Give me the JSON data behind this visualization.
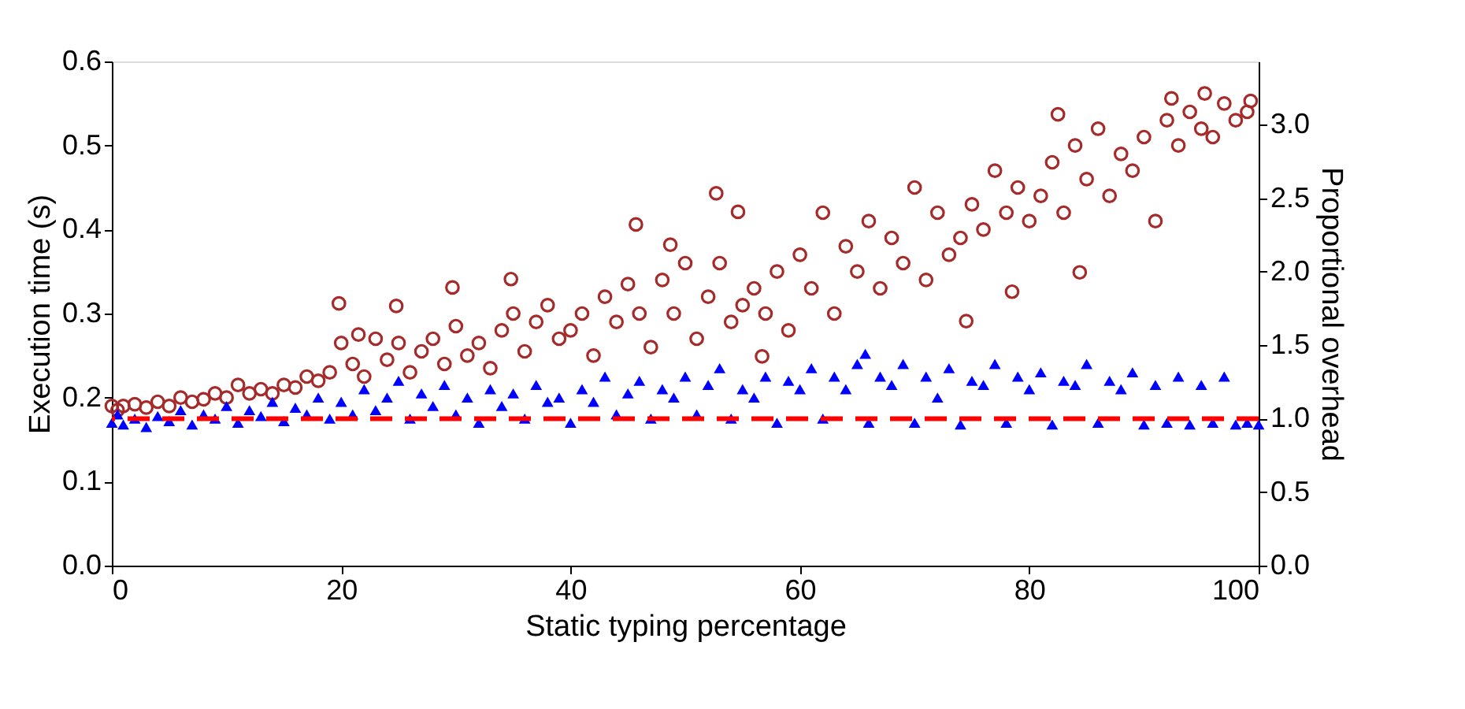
{
  "chart_data": {
    "type": "scatter",
    "xlabel": "Static typing percentage",
    "ylabel": "Execution time (s)",
    "y2label": "Proportional overhead",
    "xlim": [
      0,
      100
    ],
    "xticks": [
      0,
      20,
      40,
      60,
      80,
      100
    ],
    "ylim": [
      0,
      0.6
    ],
    "yticks": [
      {
        "value": 0,
        "label": "0.0"
      },
      {
        "value": 0.1,
        "label": "0.1"
      },
      {
        "value": 0.2,
        "label": "0.2"
      },
      {
        "value": 0.3,
        "label": "0.3"
      },
      {
        "value": 0.4,
        "label": "0.4"
      },
      {
        "value": 0.5,
        "label": "0.5"
      },
      {
        "value": 0.6,
        "label": "0.6"
      }
    ],
    "y2lim": [
      0,
      3.43
    ],
    "y2ticks": [
      {
        "value": 0,
        "label": "0.0"
      },
      {
        "value": 0.5,
        "label": "0.5"
      },
      {
        "value": 1,
        "label": "1.0"
      },
      {
        "value": 1.5,
        "label": "1.5"
      },
      {
        "value": 2,
        "label": "2.0"
      },
      {
        "value": 2.5,
        "label": "2.5"
      },
      {
        "value": 3,
        "label": "3.0"
      }
    ],
    "grid": false,
    "ref_lines": [
      {
        "axis": "y2",
        "value": 1,
        "color": "#ff0000",
        "line_style": "dashed"
      }
    ],
    "series": [
      {
        "color": "#a52a2a",
        "marker": "circle",
        "x": [
          0,
          0.5,
          1,
          2,
          3,
          4,
          5,
          6,
          7,
          8,
          9,
          10,
          11,
          12,
          13,
          14,
          15,
          16,
          17,
          18,
          19,
          19.8,
          20,
          21,
          21.5,
          22,
          23,
          24,
          24.8,
          25,
          26,
          27,
          28,
          29,
          29.7,
          30,
          31,
          32,
          33,
          34,
          34.8,
          35,
          36,
          37,
          38,
          39,
          40,
          41,
          42,
          43,
          44,
          45,
          45.7,
          46,
          47,
          48,
          48.7,
          49,
          50,
          51,
          52,
          52.7,
          53,
          54,
          54.6,
          55,
          56,
          56.7,
          57,
          58,
          59,
          60,
          61,
          62,
          63,
          64,
          65,
          66,
          67,
          68,
          69,
          70,
          71,
          72,
          73,
          74,
          74.5,
          75,
          76,
          77,
          78,
          78.5,
          79,
          80,
          81,
          82,
          82.5,
          83,
          84,
          84.4,
          85,
          86,
          87,
          88,
          89,
          90,
          91,
          92,
          92.4,
          93,
          94,
          95,
          95.3,
          96,
          97,
          98,
          99,
          99.3
        ],
        "values": [
          0.19,
          0.185,
          0.19,
          0.192,
          0.188,
          0.195,
          0.19,
          0.2,
          0.195,
          0.198,
          0.205,
          0.2,
          0.215,
          0.205,
          0.21,
          0.205,
          0.215,
          0.212,
          0.225,
          0.22,
          0.23,
          0.312,
          0.265,
          0.24,
          0.275,
          0.225,
          0.27,
          0.245,
          0.309,
          0.265,
          0.23,
          0.255,
          0.27,
          0.24,
          0.331,
          0.285,
          0.25,
          0.265,
          0.235,
          0.28,
          0.341,
          0.3,
          0.255,
          0.29,
          0.31,
          0.27,
          0.28,
          0.3,
          0.25,
          0.32,
          0.29,
          0.335,
          0.406,
          0.3,
          0.26,
          0.34,
          0.382,
          0.3,
          0.36,
          0.27,
          0.32,
          0.443,
          0.36,
          0.29,
          0.421,
          0.31,
          0.33,
          0.249,
          0.3,
          0.35,
          0.28,
          0.37,
          0.33,
          0.42,
          0.3,
          0.38,
          0.35,
          0.41,
          0.33,
          0.39,
          0.36,
          0.45,
          0.34,
          0.42,
          0.37,
          0.39,
          0.291,
          0.43,
          0.4,
          0.47,
          0.42,
          0.326,
          0.45,
          0.41,
          0.44,
          0.48,
          0.537,
          0.42,
          0.5,
          0.349,
          0.46,
          0.52,
          0.44,
          0.49,
          0.47,
          0.51,
          0.41,
          0.53,
          0.556,
          0.5,
          0.54,
          0.52,
          0.562,
          0.51,
          0.55,
          0.53,
          0.54,
          0.553
        ]
      },
      {
        "color": "#0000ff",
        "marker": "triangle",
        "x": [
          0,
          0.5,
          1,
          2,
          3,
          4,
          5,
          6,
          7,
          8,
          9,
          10,
          11,
          12,
          13,
          14,
          15,
          16,
          17,
          18,
          19,
          20,
          21,
          22,
          23,
          24,
          25,
          26,
          27,
          28,
          29,
          30,
          31,
          32,
          33,
          34,
          35,
          36,
          37,
          38,
          39,
          40,
          41,
          42,
          43,
          44,
          45,
          46,
          47,
          48,
          49,
          50,
          51,
          52,
          53,
          54,
          55,
          56,
          57,
          58,
          59,
          60,
          61,
          62,
          63,
          64,
          65,
          65.7,
          66,
          67,
          68,
          69,
          70,
          71,
          72,
          73,
          74,
          75,
          76,
          77,
          78,
          79,
          80,
          81,
          82,
          83,
          84,
          85,
          86,
          87,
          88,
          89,
          90,
          91,
          92,
          93,
          94,
          95,
          96,
          97,
          98,
          99,
          100
        ],
        "values": [
          0.17,
          0.18,
          0.168,
          0.175,
          0.165,
          0.178,
          0.172,
          0.185,
          0.168,
          0.18,
          0.175,
          0.19,
          0.17,
          0.185,
          0.178,
          0.195,
          0.172,
          0.188,
          0.18,
          0.2,
          0.175,
          0.195,
          0.18,
          0.21,
          0.185,
          0.2,
          0.22,
          0.175,
          0.205,
          0.19,
          0.215,
          0.18,
          0.2,
          0.17,
          0.21,
          0.19,
          0.205,
          0.175,
          0.215,
          0.195,
          0.2,
          0.17,
          0.21,
          0.195,
          0.225,
          0.18,
          0.205,
          0.22,
          0.175,
          0.21,
          0.2,
          0.225,
          0.18,
          0.215,
          0.235,
          0.175,
          0.21,
          0.2,
          0.225,
          0.17,
          0.22,
          0.21,
          0.235,
          0.175,
          0.225,
          0.21,
          0.24,
          0.252,
          0.17,
          0.225,
          0.215,
          0.24,
          0.17,
          0.225,
          0.2,
          0.235,
          0.168,
          0.22,
          0.215,
          0.24,
          0.17,
          0.225,
          0.21,
          0.23,
          0.168,
          0.22,
          0.215,
          0.24,
          0.17,
          0.22,
          0.21,
          0.23,
          0.168,
          0.215,
          0.17,
          0.225,
          0.168,
          0.215,
          0.17,
          0.225,
          0.168,
          0.17,
          0.168
        ]
      }
    ]
  }
}
